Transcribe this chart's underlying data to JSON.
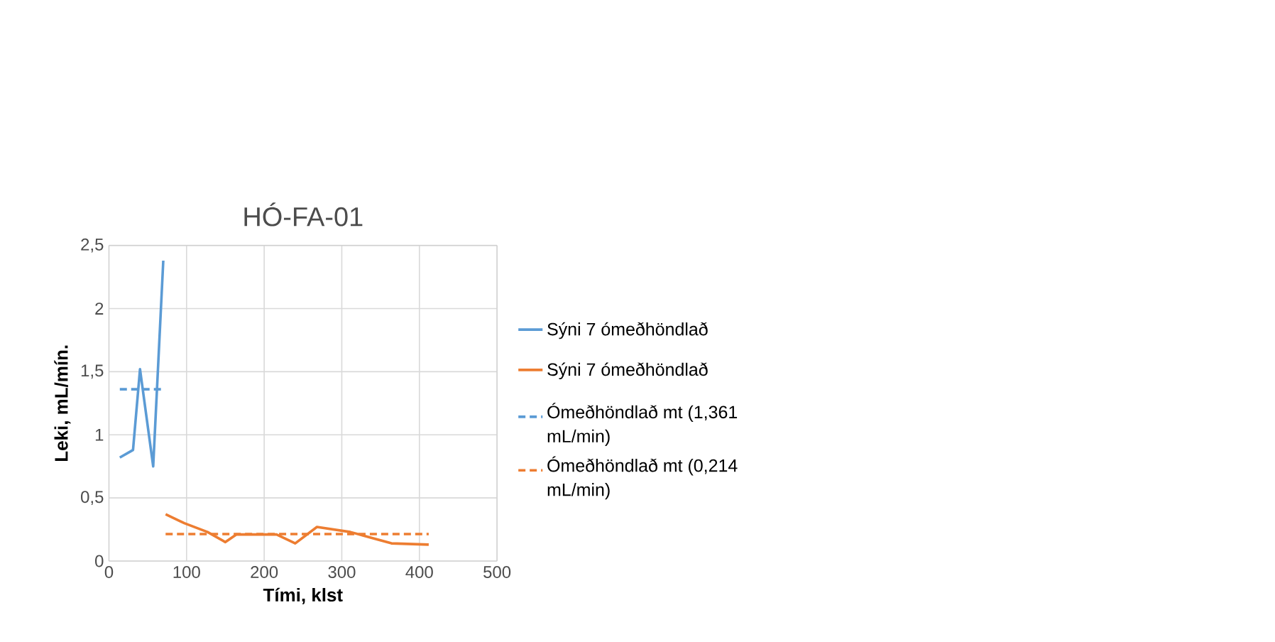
{
  "chart_data": {
    "type": "line",
    "title": "HÓ-FA-01",
    "xlabel": "Tími, klst",
    "ylabel": "Leki, mL/mín.",
    "xlim": [
      0,
      500
    ],
    "xticks": [
      0,
      100,
      200,
      300,
      400,
      500
    ],
    "ylim": [
      0,
      2.5
    ],
    "yticks": [
      0,
      {
        "value": 0.5,
        "label": "0,5"
      },
      1,
      {
        "value": 1.5,
        "label": "1,5"
      },
      2,
      {
        "value": 2.5,
        "label": "2,5"
      }
    ],
    "grid": true,
    "legend": "right",
    "marker": "none",
    "series": [
      {
        "name": "Sýni 7 ómeðhöndlað",
        "color": "#5b9bd5",
        "line_style": "solid",
        "x": [
          14,
          31,
          40,
          57,
          70
        ],
        "values": [
          0.82,
          0.88,
          1.52,
          0.75,
          2.38
        ]
      },
      {
        "name": "Sýni 7 ómeðhöndlað",
        "color": "#ed7d31",
        "line_style": "solid",
        "x": [
          73,
          97,
          127,
          150,
          164,
          216,
          240,
          268,
          311,
          364,
          412
        ],
        "values": [
          0.37,
          0.3,
          0.23,
          0.15,
          0.21,
          0.21,
          0.14,
          0.27,
          0.23,
          0.14,
          0.13
        ]
      },
      {
        "name": "Ómeðhöndlað mt (1,361 mL/min)",
        "color": "#5b9bd5",
        "line_style": "dashed",
        "x": [
          14,
          70
        ],
        "values": [
          1.361,
          1.361
        ]
      },
      {
        "name": "Ómeðhöndlað mt (0,214 mL/min)",
        "color": "#ed7d31",
        "line_style": "dashed",
        "x": [
          73,
          412
        ],
        "values": [
          0.214,
          0.214
        ]
      }
    ]
  }
}
